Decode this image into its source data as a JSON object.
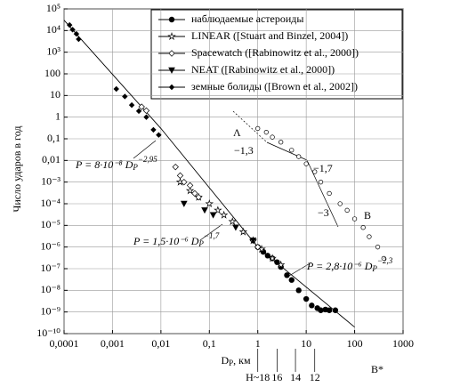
{
  "chart_data": {
    "type": "scatter",
    "ylabel": "Число ударов в год",
    "xlabel": {
      "text": "D",
      "sub": "P",
      "rest": ", км"
    },
    "log_x": true,
    "log_y": true,
    "grid": true,
    "legend_position": "upper right",
    "xlim": [
      0.0001,
      1000
    ],
    "ylim": [
      1e-10,
      100000
    ],
    "xticks": [
      {
        "value": 0.0001,
        "label": "0,0001"
      },
      {
        "value": 0.001,
        "label": "0,001"
      },
      {
        "value": 0.01,
        "label": "0,01"
      },
      {
        "value": 0.1,
        "label": "0,1"
      },
      1,
      10,
      100,
      1000
    ],
    "yticks": [
      {
        "value": 100000,
        "label": "10⁵"
      },
      {
        "value": 10000,
        "label": "10⁴"
      },
      {
        "value": 1000,
        "label": "10³"
      },
      100,
      10,
      1,
      {
        "value": 0.1,
        "label": "0,1"
      },
      {
        "value": 0.01,
        "label": "0,01"
      },
      {
        "value": 0.001,
        "label": "10⁻³"
      },
      {
        "value": 0.0001,
        "label": "10⁻⁴"
      },
      {
        "value": 1e-05,
        "label": "10⁻⁵"
      },
      {
        "value": 1e-06,
        "label": "10⁻⁶"
      },
      {
        "value": 1e-07,
        "label": "10⁻⁷"
      },
      {
        "value": 1e-08,
        "label": "10⁻⁸"
      },
      {
        "value": 1e-09,
        "label": "10⁻⁹"
      },
      {
        "value": 1e-10,
        "label": "10⁻¹⁰"
      }
    ],
    "h_ticks": [
      {
        "value": 1,
        "label": "H~18"
      },
      {
        "value": 2.5,
        "label": "16"
      },
      {
        "value": 6,
        "label": "14"
      },
      {
        "value": 15,
        "label": "12"
      }
    ],
    "series": [
      {
        "name": "наблюдаемые астероиды",
        "color": "#000000",
        "marker": "circle",
        "x": [
          1,
          1.3,
          1.6,
          2,
          2.5,
          3,
          4,
          5,
          7,
          10,
          13,
          17,
          20,
          25,
          30,
          40
        ],
        "values": [
          1e-06,
          6e-07,
          4e-07,
          3e-07,
          2e-07,
          1.2e-07,
          5e-08,
          3e-08,
          1e-08,
          4e-09,
          2e-09,
          1.5e-09,
          1.2e-09,
          1.3e-09,
          1.2e-09,
          1.2e-09
        ]
      },
      {
        "name": "LINEAR ([Stuart and Binzel, 2004])",
        "color": "#000000",
        "marker": "star",
        "x": [
          0.025,
          0.04,
          0.06,
          0.1,
          0.15,
          0.2,
          0.3,
          0.5,
          0.8,
          1.2,
          2,
          3
        ],
        "values": [
          0.001,
          0.0004,
          0.0002,
          0.0001,
          5e-05,
          3e-05,
          1.5e-05,
          5e-06,
          2e-06,
          8e-07,
          3e-07,
          1.5e-07
        ]
      },
      {
        "name": "Spacewatch ([Rabinowitz et al., 2000])",
        "color": "#000000",
        "marker": "open-diamond",
        "x": [
          0.004,
          0.005,
          0.02,
          0.025,
          0.03,
          0.04,
          0.05,
          0.06,
          0.8,
          1
        ],
        "values": [
          3,
          2,
          0.005,
          0.002,
          0.001,
          0.0007,
          0.0003,
          0.0002,
          2e-06,
          1e-06
        ]
      },
      {
        "name": "NEAT ([Rabinowitz et al., 2000])",
        "color": "#000000",
        "marker": "triangle-down",
        "x": [
          0.03,
          0.08,
          0.12,
          0.35,
          0.8
        ],
        "values": [
          0.0001,
          5e-05,
          3e-05,
          8e-06,
          2e-06
        ]
      },
      {
        "name": "земные болиды ([Brown et al., 2002])",
        "color": "#000000",
        "marker": "diamond",
        "x": [
          0.00013,
          0.00015,
          0.00018,
          0.0002,
          0.0012,
          0.0018,
          0.0025,
          0.0035,
          0.005,
          0.007,
          0.009
        ],
        "values": [
          18000,
          11000,
          7000,
          4000,
          20,
          9,
          3.6,
          1.9,
          1,
          0.26,
          0.15
        ]
      },
      {
        "color": "#000000",
        "marker": "open-circle",
        "x": [
          1,
          1.5,
          2,
          3,
          5,
          7,
          10,
          15,
          20,
          30,
          50,
          70,
          100,
          150,
          200,
          300,
          400
        ],
        "values": [
          0.3,
          0.2,
          0.12,
          0.07,
          0.03,
          0.015,
          0.007,
          0.003,
          0.001,
          0.0003,
          0.0001,
          5e-05,
          2e-05,
          8e-06,
          3e-06,
          1e-06,
          3e-07
        ]
      }
    ],
    "fit_line": {
      "x": [
        0.0001,
        0.01,
        1,
        100
      ],
      "values": [
        30000,
        0.3,
        1e-06,
        2e-10
      ]
    },
    "formulas": [
      {
        "text": "P = 8·10⁻⁸ D",
        "sub": "P",
        "sup": "−2,95"
      },
      {
        "text": "P = 1,5·10⁻⁶ D",
        "sub": "P",
        "sup": "−1,7"
      },
      {
        "text": "P = 2,8·10⁻⁶ D",
        "sub": "P",
        "sup": "−2,3"
      }
    ],
    "annotations": [
      "Λ",
      "−1,3",
      "−1,7",
      "−3",
      "B",
      "B*"
    ]
  }
}
